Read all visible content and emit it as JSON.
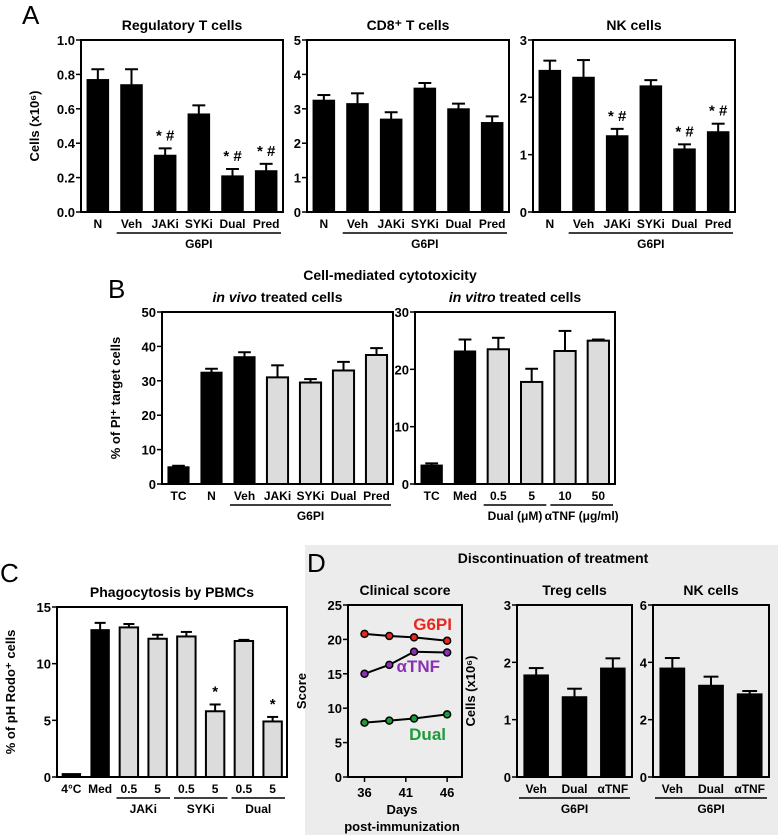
{
  "panels": {
    "A": {
      "letter": "A"
    },
    "B": {
      "letter": "B",
      "title": "Cell-mediated cytotoxicity"
    },
    "C": {
      "letter": "C"
    },
    "D": {
      "letter": "D",
      "title": "Discontinuation of treatment"
    }
  },
  "colors": {
    "black": "#000000",
    "gray": "#dcdcdc",
    "d_background": "#ececec",
    "g6pi": "#e8281e",
    "atnf": "#8b2fb5",
    "dual": "#1f9a3a"
  },
  "chart_data": [
    {
      "id": "A1",
      "type": "bar",
      "title": "Regulatory T cells",
      "ylabel": "Cells (x10⁶)",
      "ylim": [
        0,
        1.0
      ],
      "yticks": [
        0,
        0.2,
        0.4,
        0.6,
        0.8,
        1.0
      ],
      "ytick_labels": [
        "0.0",
        "0.2",
        "0.4",
        "0.6",
        "0.8",
        "1.0"
      ],
      "categories": [
        "N",
        "Veh",
        "JAKi",
        "SYKi",
        "Dual",
        "Pred"
      ],
      "values": [
        0.77,
        0.74,
        0.33,
        0.57,
        0.21,
        0.24
      ],
      "errors": [
        0.06,
        0.09,
        0.04,
        0.05,
        0.04,
        0.04
      ],
      "fills": [
        "black",
        "black",
        "black",
        "black",
        "black",
        "black"
      ],
      "annotations": [
        "",
        "",
        "* #",
        "",
        "* #",
        "* #"
      ],
      "groups": [
        {
          "label": "G6PI",
          "from": 1,
          "to": 5
        }
      ]
    },
    {
      "id": "A2",
      "type": "bar",
      "title": "CD8⁺ T cells",
      "ylabel": "",
      "ylim": [
        0,
        5
      ],
      "yticks": [
        0,
        1,
        2,
        3,
        4,
        5
      ],
      "ytick_labels": [
        "0",
        "1",
        "2",
        "3",
        "4",
        "5"
      ],
      "categories": [
        "N",
        "Veh",
        "JAKi",
        "SYKi",
        "Dual",
        "Pred"
      ],
      "values": [
        3.25,
        3.15,
        2.7,
        3.6,
        3.0,
        2.6
      ],
      "errors": [
        0.15,
        0.3,
        0.2,
        0.15,
        0.15,
        0.18
      ],
      "fills": [
        "black",
        "black",
        "black",
        "black",
        "black",
        "black"
      ],
      "annotations": [
        "",
        "",
        "",
        "",
        "",
        ""
      ],
      "groups": [
        {
          "label": "G6PI",
          "from": 1,
          "to": 5
        }
      ]
    },
    {
      "id": "A3",
      "type": "bar",
      "title": "NK cells",
      "ylabel": "",
      "ylim": [
        0,
        3
      ],
      "yticks": [
        0,
        1,
        2,
        3
      ],
      "ytick_labels": [
        "0",
        "1",
        "2",
        "3"
      ],
      "categories": [
        "N",
        "Veh",
        "JAKi",
        "SYKi",
        "Dual",
        "Pred"
      ],
      "values": [
        2.47,
        2.35,
        1.33,
        2.2,
        1.1,
        1.4
      ],
      "errors": [
        0.17,
        0.3,
        0.12,
        0.1,
        0.08,
        0.14
      ],
      "fills": [
        "black",
        "black",
        "black",
        "black",
        "black",
        "black"
      ],
      "annotations": [
        "",
        "",
        "* #",
        "",
        "* #",
        "* #"
      ],
      "groups": [
        {
          "label": "G6PI",
          "from": 1,
          "to": 5
        }
      ]
    },
    {
      "id": "B1",
      "type": "bar",
      "title_italic": "in vivo",
      "title": " treated cells",
      "ylabel": "% of PI⁺ target cells",
      "ylim": [
        0,
        50
      ],
      "yticks": [
        0,
        10,
        20,
        30,
        40,
        50
      ],
      "ytick_labels": [
        "0",
        "10",
        "20",
        "30",
        "40",
        "50"
      ],
      "categories": [
        "TC",
        "N",
        "Veh",
        "JAKi",
        "SYKi",
        "Dual",
        "Pred"
      ],
      "values": [
        5,
        32.5,
        37,
        31,
        29.5,
        33,
        37.5
      ],
      "errors": [
        0.3,
        1,
        1.3,
        3.5,
        1,
        2.5,
        2
      ],
      "fills": [
        "black",
        "black",
        "black",
        "gray",
        "gray",
        "gray",
        "gray"
      ],
      "annotations": [
        "",
        "",
        "",
        "",
        "",
        "",
        ""
      ],
      "groups": [
        {
          "label": "G6PI",
          "from": 2,
          "to": 6
        }
      ]
    },
    {
      "id": "B2",
      "type": "bar",
      "title_italic": "in vitro",
      "title": " treated cells",
      "ylabel": "",
      "ylim": [
        0,
        30
      ],
      "yticks": [
        0,
        10,
        20,
        30
      ],
      "ytick_labels": [
        "0",
        "10",
        "20",
        "30"
      ],
      "categories": [
        "TC",
        "Med",
        "0.5",
        "5",
        "10",
        "50"
      ],
      "values": [
        3.3,
        23.2,
        23.5,
        17.8,
        23.2,
        25
      ],
      "errors": [
        0.3,
        2,
        2,
        2.3,
        3.5,
        0.2
      ],
      "fills": [
        "black",
        "black",
        "gray",
        "gray",
        "gray",
        "gray"
      ],
      "annotations": [
        "",
        "",
        "",
        "",
        "",
        ""
      ],
      "groups": [
        {
          "label": "Dual (μM)",
          "from": 2,
          "to": 3
        },
        {
          "label": "αTNF (μg/ml)",
          "from": 4,
          "to": 5
        }
      ]
    },
    {
      "id": "C1",
      "type": "bar",
      "title": "Phagocytosis by PBMCs",
      "ylabel": "% of pH Rodo⁺ cells",
      "ylim": [
        0,
        15
      ],
      "yticks": [
        0,
        5,
        10,
        15
      ],
      "ytick_labels": [
        "0",
        "5",
        "10",
        "15"
      ],
      "categories": [
        "4°C",
        "Med",
        "0.5",
        "5",
        "0.5",
        "5",
        "0.5",
        "5"
      ],
      "values": [
        0.3,
        13,
        13.2,
        12.2,
        12.4,
        5.8,
        12,
        4.9
      ],
      "errors": [
        0,
        0.6,
        0.3,
        0.35,
        0.4,
        0.6,
        0.1,
        0.4
      ],
      "fills": [
        "black",
        "black",
        "gray",
        "gray",
        "gray",
        "gray",
        "gray",
        "gray"
      ],
      "annotations": [
        "",
        "",
        "",
        "",
        "",
        "*",
        "",
        "*"
      ],
      "groups": [
        {
          "label": "JAKi",
          "from": 2,
          "to": 3
        },
        {
          "label": "SYKi",
          "from": 4,
          "to": 5
        },
        {
          "label": "Dual",
          "from": 6,
          "to": 7
        }
      ]
    },
    {
      "id": "D1",
      "type": "line",
      "title": "Clinical score",
      "ylabel": "Score",
      "xlabel": "Days",
      "xlabel2": "post-immunization",
      "ylim": [
        0,
        25
      ],
      "xlim": [
        34,
        47.8
      ],
      "yticks": [
        0,
        5,
        10,
        15,
        20,
        25
      ],
      "ytick_labels": [
        "0",
        "5",
        "10",
        "15",
        "20",
        "25"
      ],
      "xticks": [
        36,
        41,
        46
      ],
      "xtick_labels": [
        "36",
        "41",
        "46"
      ],
      "series": [
        {
          "name": "G6PI",
          "color": "#e8281e",
          "x": [
            36,
            39,
            42,
            46
          ],
          "y": [
            20.8,
            20.5,
            20.3,
            19.8
          ]
        },
        {
          "name": "αTNF",
          "color": "#8b2fb5",
          "x": [
            36,
            39,
            42,
            46
          ],
          "y": [
            15,
            16.3,
            18.2,
            18.1
          ]
        },
        {
          "name": "Dual",
          "color": "#1f9a3a",
          "x": [
            36,
            39,
            42,
            46
          ],
          "y": [
            7.9,
            8.2,
            8.5,
            9.1
          ]
        }
      ]
    },
    {
      "id": "D2",
      "type": "bar",
      "title": "Treg cells",
      "ylabel": "Cells (x10⁶)",
      "ylim": [
        0,
        3
      ],
      "yticks": [
        0,
        1,
        2,
        3
      ],
      "ytick_labels": [
        "0",
        "1",
        "2",
        "3"
      ],
      "categories": [
        "Veh",
        "Dual",
        "αTNF"
      ],
      "values": [
        1.78,
        1.4,
        1.9
      ],
      "errors": [
        0.12,
        0.14,
        0.17
      ],
      "fills": [
        "black",
        "black",
        "black"
      ],
      "annotations": [
        "",
        "",
        ""
      ],
      "groups": [
        {
          "label": "G6PI",
          "from": 0,
          "to": 2
        }
      ]
    },
    {
      "id": "D3",
      "type": "bar",
      "title": "NK cells",
      "ylabel": "",
      "ylim": [
        0,
        6
      ],
      "yticks": [
        0,
        2,
        4,
        6
      ],
      "ytick_labels": [
        "0",
        "2",
        "4",
        "6"
      ],
      "categories": [
        "Veh",
        "Dual",
        "αTNF"
      ],
      "values": [
        3.8,
        3.2,
        2.9
      ],
      "errors": [
        0.35,
        0.3,
        0.1
      ],
      "fills": [
        "black",
        "black",
        "black"
      ],
      "annotations": [
        "",
        "",
        ""
      ],
      "groups": [
        {
          "label": "G6PI",
          "from": 0,
          "to": 2
        }
      ]
    }
  ]
}
